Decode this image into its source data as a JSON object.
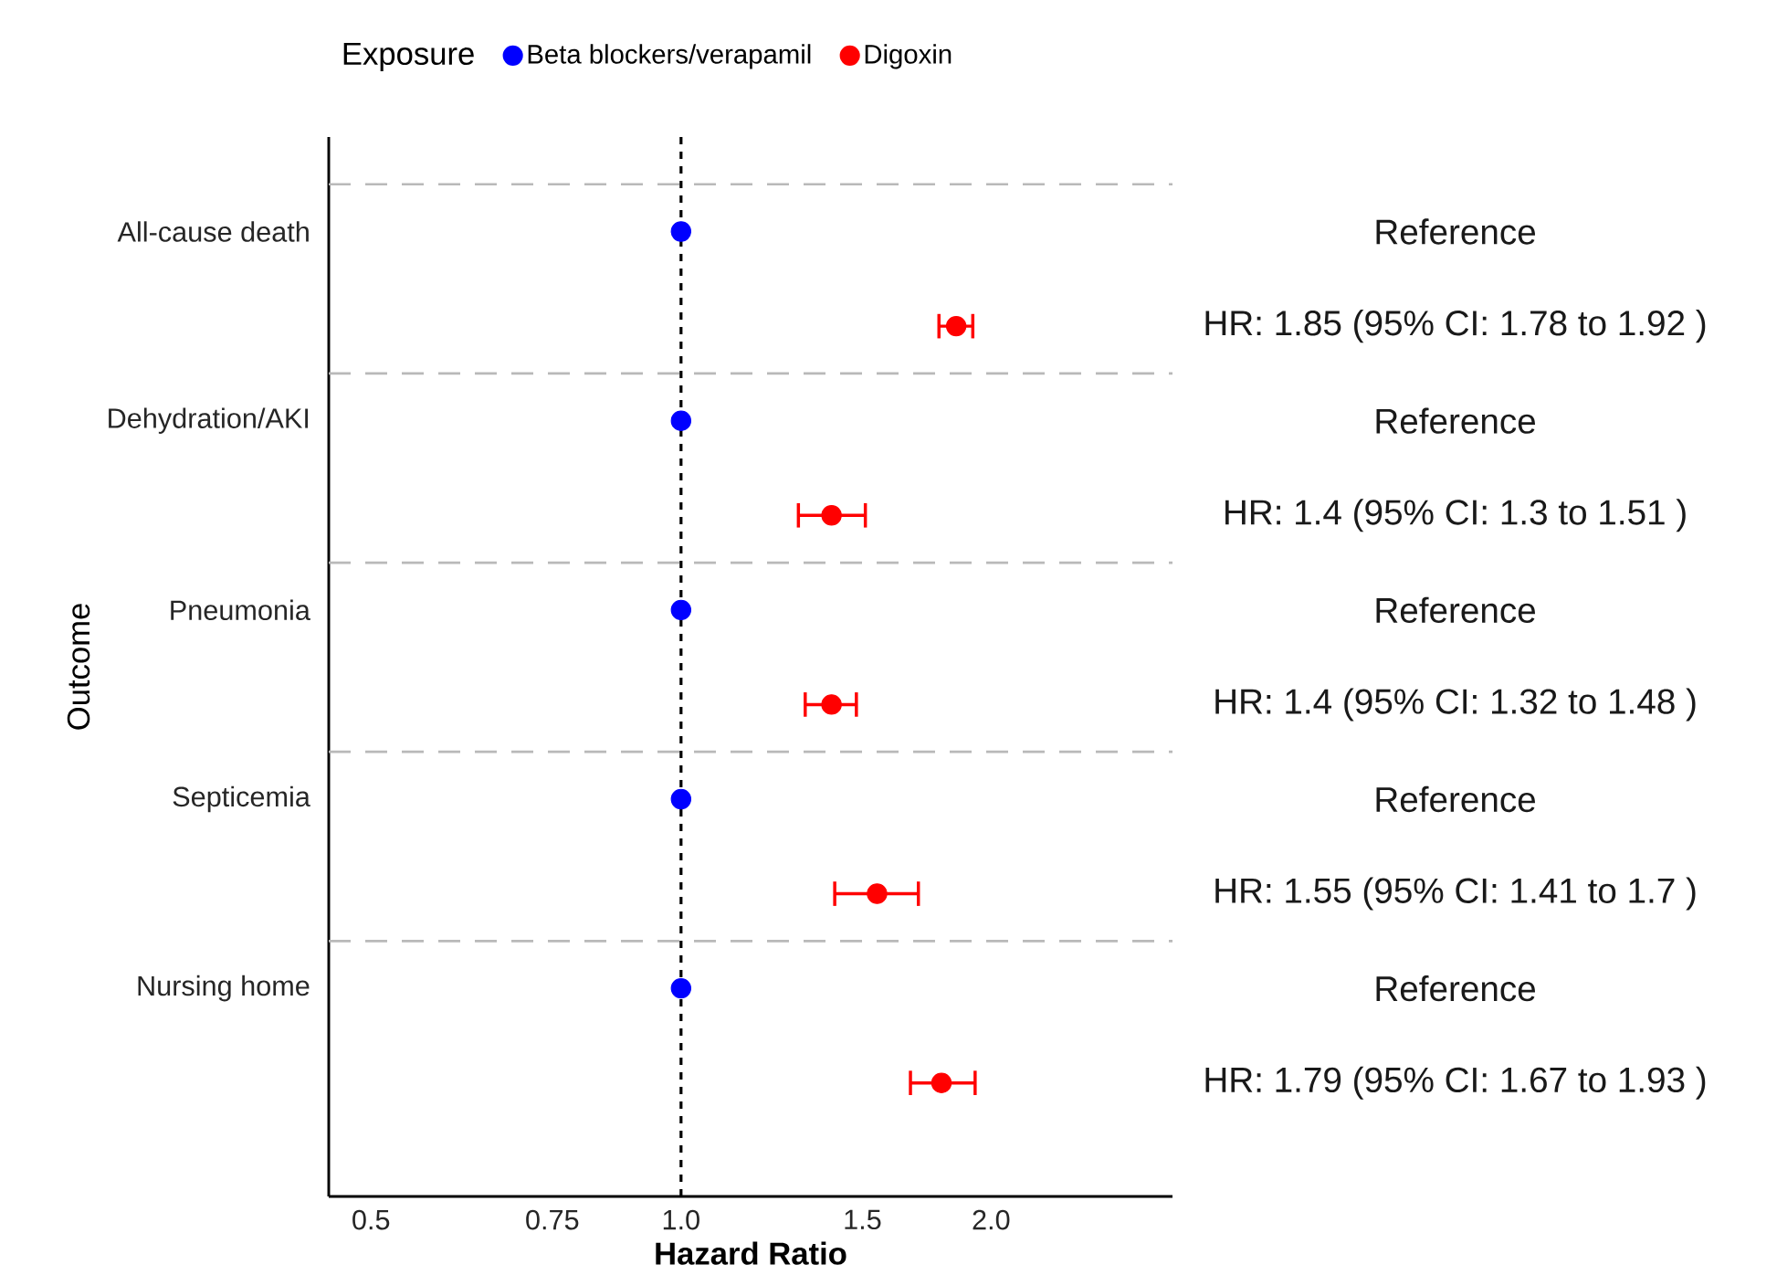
{
  "chart_data": {
    "type": "scatter",
    "orientation": "horizontal",
    "categories": [
      "All-cause death",
      "Dehydration/AKI",
      "Pneumonia",
      "Septicemia",
      "Nursing home"
    ],
    "xlabel": "Hazard Ratio",
    "ylabel": "Outcome",
    "legend_title": "Exposure",
    "legend": "top",
    "marker": "circle",
    "log": "x",
    "xlim": [
      0.455,
      3
    ],
    "xticks": [
      0.5,
      0.75,
      {
        "value": 1,
        "label": "1.0"
      },
      1.5,
      {
        "value": 2,
        "label": "2.0"
      }
    ],
    "ref_lines": [
      {
        "axis": "x",
        "value": 1,
        "color": "#000000",
        "line_style": "dashed"
      }
    ],
    "series": [
      {
        "name": "Beta blockers/verapamil",
        "color": "#0000ff",
        "values": [
          1,
          1,
          1,
          1,
          1
        ],
        "value_labels": [
          "Reference",
          "Reference",
          "Reference",
          "Reference",
          "Reference"
        ]
      },
      {
        "name": "Digoxin",
        "color": "#ff0000",
        "values": [
          1.85,
          1.4,
          1.4,
          1.55,
          1.79
        ],
        "errors": [
          [
            1.78,
            1.92
          ],
          [
            1.3,
            1.51
          ],
          [
            1.32,
            1.48
          ],
          [
            1.41,
            1.7
          ],
          [
            1.67,
            1.93
          ]
        ],
        "value_labels": [
          "HR: 1.85 (95% CI: 1.78 to 1.92 )",
          "HR: 1.4 (95% CI: 1.3 to 1.51 )",
          "HR: 1.4 (95% CI: 1.32 to 1.48 )",
          "HR: 1.55 (95% CI: 1.41 to 1.7 )",
          "HR: 1.79 (95% CI: 1.67 to 1.93 )"
        ]
      }
    ]
  }
}
